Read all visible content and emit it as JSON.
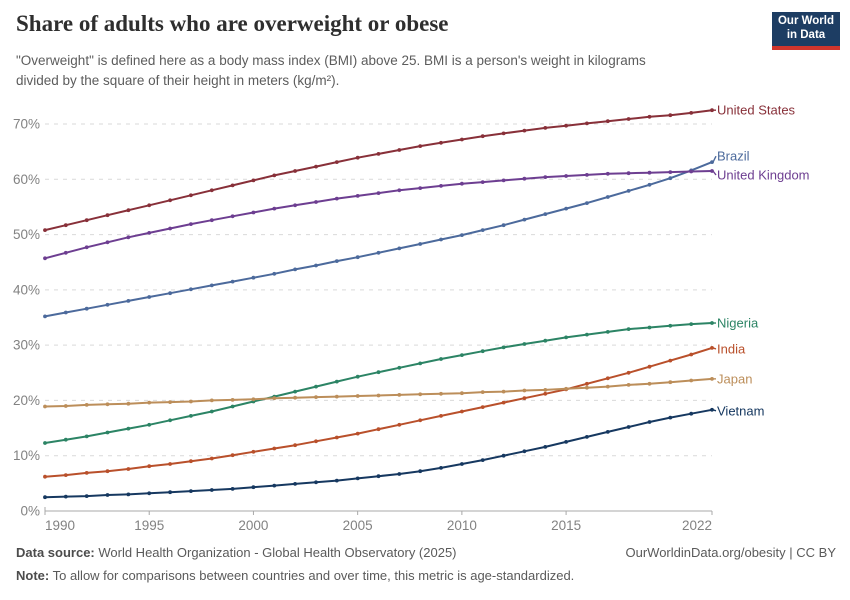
{
  "header": {
    "title": "Share of adults who are overweight or obese",
    "subtitle": "\"Overweight\" is defined here as a body mass index (BMI) above 25. BMI is a person's weight in kilograms divided by the square of their height in meters (kg/m²).",
    "logo": {
      "line1": "Our World",
      "line2": "in Data",
      "bg_color": "#1D3D63",
      "accent_color": "#D0352C"
    }
  },
  "chart_data": {
    "type": "line",
    "title": "Share of adults who are overweight or obese",
    "xlabel": "",
    "ylabel": "",
    "x_range": [
      1990,
      2022
    ],
    "ylim": [
      0,
      70
    ],
    "grid": true,
    "grid_style": "dashed",
    "legend_position": "right-edge-labels",
    "grid_color": "#d9d9d9",
    "axis_color": "#a8a8a8",
    "tick_label_color": "#828282",
    "x_start_year": 1990,
    "x_step_years": 1,
    "x_ticks": [
      {
        "v": 1990,
        "label": "1990"
      },
      {
        "v": 1995,
        "label": "1995"
      },
      {
        "v": 2000,
        "label": "2000"
      },
      {
        "v": 2005,
        "label": "2005"
      },
      {
        "v": 2010,
        "label": "2010"
      },
      {
        "v": 2015,
        "label": "2015"
      },
      {
        "v": 2022,
        "label": "2022"
      }
    ],
    "y_ticks": [
      {
        "v": 0,
        "label": "0%"
      },
      {
        "v": 10,
        "label": "10%"
      },
      {
        "v": 20,
        "label": "20%"
      },
      {
        "v": 30,
        "label": "30%"
      },
      {
        "v": 40,
        "label": "40%"
      },
      {
        "v": 50,
        "label": "50%"
      },
      {
        "v": 60,
        "label": "60%"
      },
      {
        "v": 70,
        "label": "70%"
      }
    ],
    "series": [
      {
        "name": "united-states",
        "label": "United States",
        "color": "#883039",
        "label_dy": 0,
        "values": [
          50.8,
          51.7,
          52.6,
          53.5,
          54.4,
          55.3,
          56.2,
          57.1,
          58.0,
          58.9,
          59.8,
          60.7,
          61.5,
          62.3,
          63.1,
          63.9,
          64.6,
          65.3,
          66.0,
          66.6,
          67.2,
          67.8,
          68.3,
          68.8,
          69.3,
          69.7,
          70.1,
          70.5,
          70.9,
          71.3,
          71.6,
          72.0,
          72.5
        ]
      },
      {
        "name": "brazil",
        "label": "Brazil",
        "color": "#4C6A9C",
        "label_dy": -6,
        "values": [
          35.2,
          35.9,
          36.6,
          37.3,
          38.0,
          38.7,
          39.4,
          40.1,
          40.8,
          41.5,
          42.2,
          42.9,
          43.7,
          44.4,
          45.2,
          45.9,
          46.7,
          47.5,
          48.3,
          49.1,
          49.9,
          50.8,
          51.7,
          52.7,
          53.7,
          54.7,
          55.7,
          56.8,
          57.9,
          59.0,
          60.2,
          61.6,
          63.1
        ]
      },
      {
        "name": "united-kingdom",
        "label": "United Kingdom",
        "color": "#6D3E91",
        "label_dy": 4,
        "values": [
          45.7,
          46.7,
          47.7,
          48.6,
          49.5,
          50.3,
          51.1,
          51.9,
          52.6,
          53.3,
          54.0,
          54.7,
          55.3,
          55.9,
          56.5,
          57.0,
          57.5,
          58.0,
          58.4,
          58.8,
          59.2,
          59.5,
          59.8,
          60.1,
          60.4,
          60.6,
          60.8,
          61.0,
          61.1,
          61.2,
          61.3,
          61.4,
          61.5
        ]
      },
      {
        "name": "nigeria",
        "label": "Nigeria",
        "color": "#2C8465",
        "label_dy": 0,
        "values": [
          12.3,
          12.9,
          13.5,
          14.2,
          14.9,
          15.6,
          16.4,
          17.2,
          18.0,
          18.9,
          19.8,
          20.7,
          21.6,
          22.5,
          23.4,
          24.3,
          25.1,
          25.9,
          26.7,
          27.5,
          28.2,
          28.9,
          29.6,
          30.2,
          30.8,
          31.4,
          31.9,
          32.4,
          32.9,
          33.2,
          33.5,
          33.8,
          34.0
        ]
      },
      {
        "name": "india",
        "label": "India",
        "color": "#B9502B",
        "label_dy": 1,
        "values": [
          6.2,
          6.5,
          6.9,
          7.2,
          7.6,
          8.1,
          8.5,
          9.0,
          9.5,
          10.1,
          10.7,
          11.3,
          11.9,
          12.6,
          13.3,
          14.0,
          14.8,
          15.6,
          16.4,
          17.2,
          18.0,
          18.8,
          19.6,
          20.4,
          21.2,
          22.0,
          23.0,
          24.0,
          25.0,
          26.1,
          27.2,
          28.3,
          29.5
        ]
      },
      {
        "name": "japan",
        "label": "Japan",
        "color": "#BC8E5A",
        "label_dy": 0,
        "values": [
          18.9,
          19.0,
          19.2,
          19.3,
          19.4,
          19.6,
          19.7,
          19.8,
          20.0,
          20.1,
          20.2,
          20.4,
          20.5,
          20.6,
          20.7,
          20.8,
          20.9,
          21.0,
          21.1,
          21.2,
          21.3,
          21.5,
          21.6,
          21.8,
          21.9,
          22.1,
          22.3,
          22.5,
          22.8,
          23.0,
          23.3,
          23.6,
          23.9
        ]
      },
      {
        "name": "vietnam",
        "label": "Vietnam",
        "color": "#163860",
        "label_dy": 1,
        "values": [
          2.5,
          2.6,
          2.7,
          2.9,
          3.0,
          3.2,
          3.4,
          3.6,
          3.8,
          4.0,
          4.3,
          4.6,
          4.9,
          5.2,
          5.5,
          5.9,
          6.3,
          6.7,
          7.2,
          7.8,
          8.5,
          9.2,
          10.0,
          10.8,
          11.6,
          12.5,
          13.4,
          14.3,
          15.2,
          16.1,
          16.9,
          17.6,
          18.3
        ]
      }
    ]
  },
  "footer": {
    "source_label": "Data source:",
    "source_text": " World Health Organization - Global Health Observatory (2025)",
    "credit": "OurWorldinData.org/obesity | CC BY",
    "note_label": "Note:",
    "note_text": " To allow for comparisons between countries and over time, this metric is age-standardized."
  }
}
